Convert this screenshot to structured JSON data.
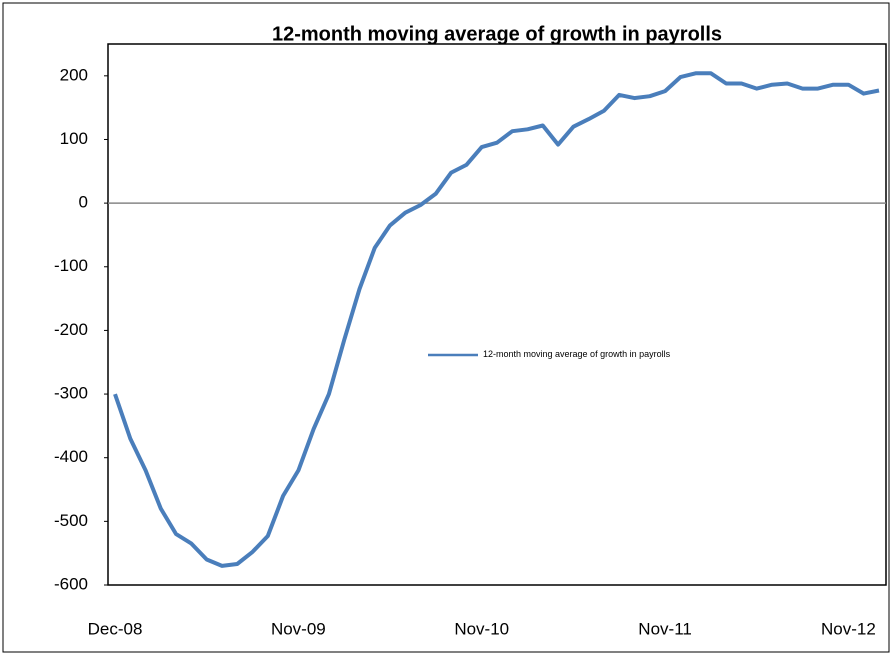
{
  "chart_data": {
    "type": "line",
    "title": "12-month moving average of growth in payrolls",
    "categories": [
      "Dec-08",
      null,
      null,
      null,
      null,
      null,
      null,
      null,
      null,
      null,
      null,
      null,
      "Nov-09",
      null,
      null,
      null,
      null,
      null,
      null,
      null,
      null,
      null,
      null,
      null,
      "Nov-10",
      null,
      null,
      null,
      null,
      null,
      null,
      null,
      null,
      null,
      null,
      null,
      "Nov-11",
      null,
      null,
      null,
      null,
      null,
      null,
      null,
      null,
      null,
      null,
      null,
      "Nov-12",
      null,
      null
    ],
    "series": [
      {
        "name": "12-month moving average of growth in payrolls",
        "color": "#4a7ebb",
        "values": [
          -300,
          -370,
          -420,
          -480,
          -520,
          -535,
          -560,
          -570,
          -567,
          -548,
          -523,
          -460,
          -420,
          -355,
          -300,
          -215,
          -135,
          -70,
          -35,
          -15,
          -3,
          15,
          48,
          60,
          88,
          95,
          113,
          116,
          122,
          92,
          120,
          132,
          145,
          170,
          165,
          168,
          176,
          198,
          204,
          204,
          188,
          188,
          180,
          186,
          188,
          180,
          180,
          186,
          186,
          172,
          177
        ]
      }
    ],
    "ylim": [
      -600,
      250
    ],
    "yticks": [
      -600,
      -500,
      -400,
      -300,
      -200,
      -100,
      0,
      100,
      200
    ],
    "grid": false,
    "legend": "center"
  }
}
